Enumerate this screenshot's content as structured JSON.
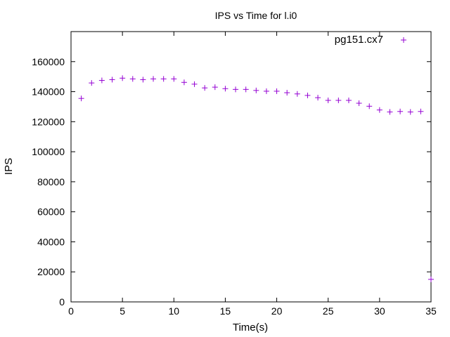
{
  "chart_data": {
    "type": "scatter",
    "title": "IPS vs Time for l.i0",
    "xlabel": "Time(s)",
    "ylabel": "IPS",
    "xlim": [
      0,
      35
    ],
    "ylim": [
      0,
      180000
    ],
    "xticks": [
      0,
      5,
      10,
      15,
      20,
      25,
      30,
      35
    ],
    "yticks": [
      0,
      20000,
      40000,
      60000,
      80000,
      100000,
      120000,
      140000,
      160000
    ],
    "grid": false,
    "legend_position": "top-right",
    "marker": "+",
    "color": "#9400d3",
    "series": [
      {
        "name": "pg151.cx7",
        "x": [
          1,
          2,
          3,
          4,
          5,
          6,
          7,
          8,
          9,
          10,
          11,
          12,
          13,
          14,
          15,
          16,
          17,
          18,
          19,
          20,
          21,
          22,
          23,
          24,
          25,
          26,
          27,
          28,
          29,
          30,
          31,
          32,
          33,
          34,
          35
        ],
        "y": [
          135500,
          145800,
          147500,
          148000,
          149000,
          148500,
          148000,
          148500,
          148500,
          148500,
          146200,
          145000,
          142500,
          143000,
          142000,
          141500,
          141500,
          140800,
          140300,
          140300,
          139300,
          138500,
          137500,
          136000,
          134200,
          134200,
          134200,
          132300,
          130300,
          127800,
          126500,
          126800,
          126500,
          126800,
          15000
        ]
      }
    ]
  }
}
